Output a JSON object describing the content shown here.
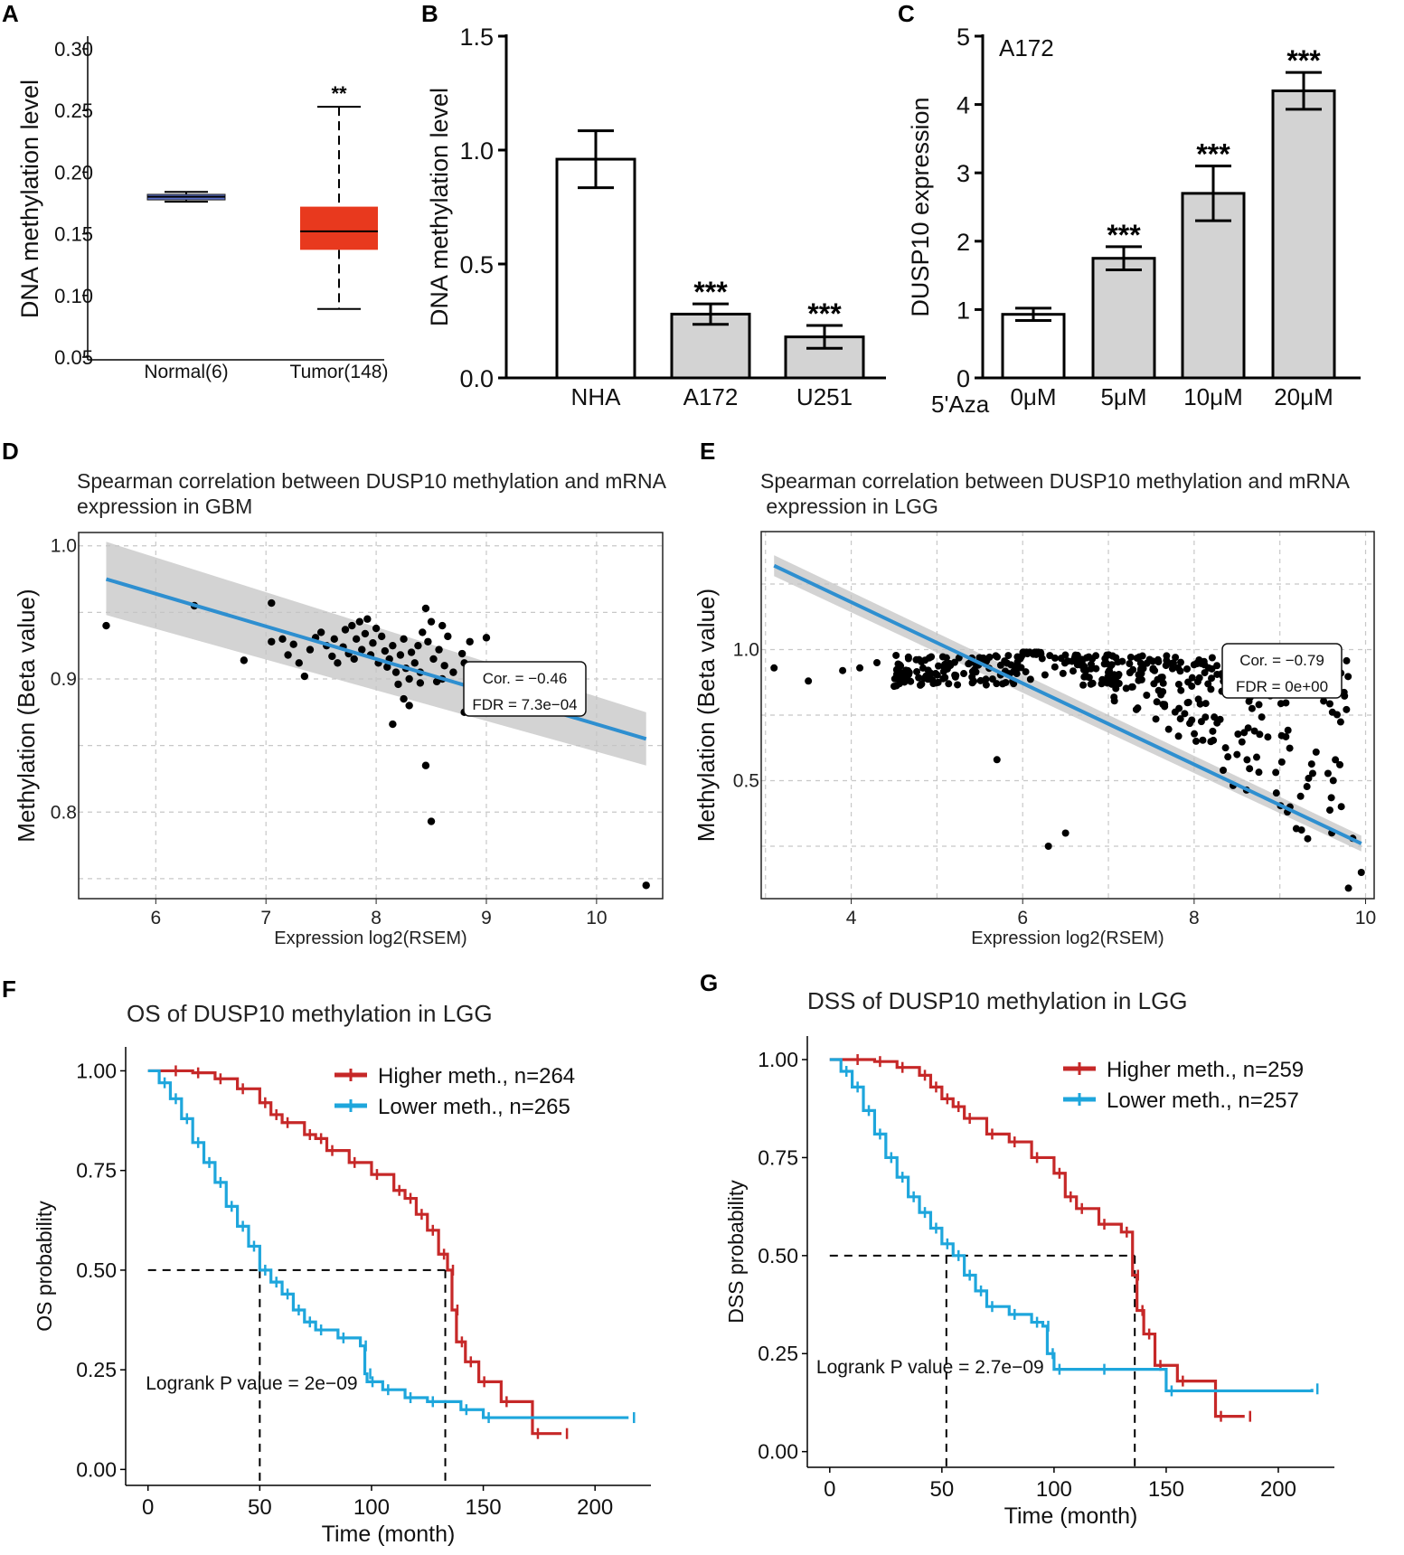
{
  "chart_data": [
    {
      "id": "A",
      "type": "box",
      "panel_label": "A",
      "ylabel": "DNA methylation level",
      "yticks": [
        "0.30",
        "0.25",
        "0.20",
        "0.15",
        "0.10",
        "0.05"
      ],
      "ylim": [
        0.05,
        0.3
      ],
      "groups": [
        {
          "label": "Normal(6)",
          "min": 0.176,
          "q1": 0.1775,
          "median": 0.18,
          "q3": 0.182,
          "max": 0.184,
          "color": "#5b6fc9",
          "annotation": ""
        },
        {
          "label": "Tumor(148)",
          "min": 0.089,
          "q1": 0.137,
          "median": 0.152,
          "q3": 0.172,
          "max": 0.253,
          "color": "#e8391e",
          "annotation": "**"
        }
      ]
    },
    {
      "id": "B",
      "type": "bar",
      "panel_label": "B",
      "ylabel": "DNA methylation level",
      "yticks": [
        "1.5",
        "1.0",
        "0.5",
        "0.0"
      ],
      "ylim": [
        0,
        1.5
      ],
      "categories": [
        "NHA",
        "A172",
        "U251"
      ],
      "values": [
        0.96,
        0.28,
        0.18
      ],
      "errors": [
        0.125,
        0.045,
        0.05
      ],
      "colors": [
        "#ffffff",
        "#d3d3d3",
        "#d3d3d3"
      ],
      "annotations": [
        "",
        "***",
        "***"
      ]
    },
    {
      "id": "C",
      "type": "bar",
      "panel_label": "C",
      "ylabel": "DUSP10 expression",
      "inset_label": "A172",
      "yticks": [
        "5",
        "4",
        "3",
        "2",
        "1",
        "0"
      ],
      "ylim": [
        0,
        5
      ],
      "xprefix": "5'Aza",
      "categories": [
        "0μM",
        "5μM",
        "10μM",
        "20μM"
      ],
      "values": [
        0.93,
        1.75,
        2.7,
        4.2
      ],
      "errors": [
        0.09,
        0.17,
        0.4,
        0.27
      ],
      "colors": [
        "#ffffff",
        "#d3d3d3",
        "#d3d3d3",
        "#d3d3d3"
      ],
      "annotations": [
        "",
        "***",
        "***",
        "***"
      ]
    },
    {
      "id": "D",
      "type": "scatter",
      "panel_label": "D",
      "title_lines": [
        "Spearman correlation between DUSP10 methylation and mRNA",
        "expression in GBM"
      ],
      "xlabel": "Expression log2(RSEM)",
      "ylabel": "Methylation (Beta value)",
      "xlim": [
        5.3,
        10.6
      ],
      "ylim": [
        0.735,
        1.01
      ],
      "xticks": [
        6,
        7,
        8,
        9,
        10
      ],
      "xtick_labels": [
        "6",
        "7",
        "8",
        "9",
        "10"
      ],
      "yticks": [
        0.8,
        0.9,
        1.0
      ],
      "ytick_labels": [
        "0.8",
        "0.9",
        "1.0"
      ],
      "minor_grid_y": [
        0.75,
        0.85,
        0.95
      ],
      "points": [
        [
          5.55,
          0.94
        ],
        [
          6.35,
          0.955
        ],
        [
          6.8,
          0.914
        ],
        [
          7.05,
          0.957
        ],
        [
          7.05,
          0.928
        ],
        [
          7.15,
          0.93
        ],
        [
          7.2,
          0.918
        ],
        [
          7.25,
          0.926
        ],
        [
          7.3,
          0.912
        ],
        [
          7.35,
          0.902
        ],
        [
          7.4,
          0.922
        ],
        [
          7.45,
          0.931
        ],
        [
          7.5,
          0.935
        ],
        [
          7.55,
          0.925
        ],
        [
          7.6,
          0.917
        ],
        [
          7.62,
          0.93
        ],
        [
          7.65,
          0.912
        ],
        [
          7.7,
          0.924
        ],
        [
          7.72,
          0.937
        ],
        [
          7.75,
          0.919
        ],
        [
          7.78,
          0.94
        ],
        [
          7.8,
          0.915
        ],
        [
          7.82,
          0.93
        ],
        [
          7.85,
          0.943
        ],
        [
          7.87,
          0.922
        ],
        [
          7.9,
          0.934
        ],
        [
          7.92,
          0.945
        ],
        [
          7.95,
          0.918
        ],
        [
          7.97,
          0.927
        ],
        [
          8.0,
          0.938
        ],
        [
          8.02,
          0.912
        ],
        [
          8.05,
          0.932
        ],
        [
          8.08,
          0.921
        ],
        [
          8.1,
          0.909
        ],
        [
          8.12,
          0.915
        ],
        [
          8.15,
          0.925
        ],
        [
          8.18,
          0.905
        ],
        [
          8.2,
          0.896
        ],
        [
          8.22,
          0.918
        ],
        [
          8.25,
          0.93
        ],
        [
          8.27,
          0.908
        ],
        [
          8.3,
          0.9
        ],
        [
          8.32,
          0.92
        ],
        [
          8.35,
          0.912
        ],
        [
          8.38,
          0.925
        ],
        [
          8.4,
          0.905
        ],
        [
          8.42,
          0.935
        ],
        [
          8.45,
          0.953
        ],
        [
          8.47,
          0.928
        ],
        [
          8.5,
          0.943
        ],
        [
          8.52,
          0.915
        ],
        [
          8.55,
          0.898
        ],
        [
          8.57,
          0.922
        ],
        [
          8.6,
          0.94
        ],
        [
          8.62,
          0.91
        ],
        [
          8.65,
          0.932
        ],
        [
          8.7,
          0.905
        ],
        [
          8.78,
          0.919
        ],
        [
          8.8,
          0.912
        ],
        [
          8.85,
          0.928
        ],
        [
          9.0,
          0.931
        ],
        [
          8.25,
          0.885
        ],
        [
          8.3,
          0.88
        ],
        [
          8.15,
          0.866
        ],
        [
          8.45,
          0.835
        ],
        [
          8.5,
          0.793
        ],
        [
          8.8,
          0.875
        ],
        [
          10.45,
          0.745
        ],
        [
          8.6,
          0.9
        ],
        [
          8.4,
          0.897
        ]
      ],
      "fit": {
        "x": [
          5.55,
          10.45
        ],
        "y": [
          0.975,
          0.855
        ]
      },
      "band": {
        "x": [
          5.55,
          10.45
        ],
        "upper": [
          1.003,
          0.875
        ],
        "lower": [
          0.948,
          0.835
        ]
      },
      "stats": [
        "Cor. = −0.46",
        "FDR = 7.3e−04"
      ]
    },
    {
      "id": "E",
      "type": "scatter",
      "panel_label": "E",
      "title_lines": [
        "Spearman correlation between DUSP10 methylation and mRNA",
        " expression in LGG"
      ],
      "xlabel": "Expression log2(RSEM)",
      "ylabel": "Methylation (Beta value)",
      "xlim": [
        2.95,
        10.1
      ],
      "ylim": [
        0.05,
        1.45
      ],
      "xticks": [
        4,
        6,
        8,
        10
      ],
      "xtick_labels": [
        "4",
        "6",
        "8",
        "10"
      ],
      "yticks": [
        0.5,
        1.0
      ],
      "ytick_labels": [
        "0.5",
        "1.0"
      ],
      "minor_grid_y": [
        0.25,
        0.75,
        1.25
      ],
      "minor_grid_x": [
        3,
        5,
        7,
        9
      ],
      "fit": {
        "x": [
          3.1,
          9.95
        ],
        "y": [
          1.32,
          0.26
        ]
      },
      "band": {
        "x": [
          3.1,
          9.95
        ],
        "upper": [
          1.36,
          0.29
        ],
        "lower": [
          1.28,
          0.23
        ]
      },
      "stats": [
        "Cor. = −0.79",
        "FDR = 0e+00"
      ]
    },
    {
      "id": "F",
      "type": "km",
      "panel_label": "F",
      "title": "OS of DUSP10 methylation in LGG",
      "xlabel": "Time (month)",
      "ylabel": "OS probability",
      "xlim": [
        -10,
        225
      ],
      "ylim": [
        -0.04,
        1.06
      ],
      "xticks": [
        0,
        50,
        100,
        150,
        200
      ],
      "yticks": [
        0,
        0.25,
        0.5,
        0.75,
        1.0
      ],
      "ytick_labels": [
        "0.00",
        "0.25",
        "0.50",
        "0.75",
        "1.00"
      ],
      "series": [
        {
          "name": "Higher meth., n=264",
          "color": "#c62828",
          "steps": [
            [
              0,
              1
            ],
            [
              10,
              1
            ],
            [
              20,
              0.995
            ],
            [
              30,
              0.98
            ],
            [
              40,
              0.955
            ],
            [
              50,
              0.92
            ],
            [
              55,
              0.89
            ],
            [
              60,
              0.87
            ],
            [
              70,
              0.84
            ],
            [
              75,
              0.83
            ],
            [
              80,
              0.8
            ],
            [
              90,
              0.77
            ],
            [
              100,
              0.74
            ],
            [
              110,
              0.7
            ],
            [
              115,
              0.68
            ],
            [
              120,
              0.64
            ],
            [
              125,
              0.6
            ],
            [
              130,
              0.54
            ],
            [
              134,
              0.5
            ],
            [
              136,
              0.4
            ],
            [
              138,
              0.32
            ],
            [
              142,
              0.27
            ],
            [
              148,
              0.22
            ],
            [
              158,
              0.17
            ],
            [
              172,
              0.09
            ],
            [
              185,
              0.09
            ]
          ]
        },
        {
          "name": "Lower meth., n=265",
          "color": "#1ea6dc",
          "steps": [
            [
              0,
              1
            ],
            [
              5,
              0.97
            ],
            [
              10,
              0.93
            ],
            [
              15,
              0.88
            ],
            [
              20,
              0.82
            ],
            [
              25,
              0.77
            ],
            [
              30,
              0.72
            ],
            [
              35,
              0.66
            ],
            [
              40,
              0.61
            ],
            [
              45,
              0.56
            ],
            [
              50,
              0.5
            ],
            [
              55,
              0.47
            ],
            [
              60,
              0.44
            ],
            [
              65,
              0.4
            ],
            [
              70,
              0.37
            ],
            [
              75,
              0.35
            ],
            [
              85,
              0.33
            ],
            [
              95,
              0.31
            ],
            [
              97,
              0.24
            ],
            [
              98,
              0.22
            ],
            [
              105,
              0.2
            ],
            [
              115,
              0.18
            ],
            [
              125,
              0.17
            ],
            [
              140,
              0.15
            ],
            [
              150,
              0.13
            ],
            [
              215,
              0.13
            ]
          ]
        }
      ],
      "median_lines": [
        [
          50,
          0.5
        ],
        [
          133,
          0.5
        ]
      ],
      "pvalue": "Logrank P value = 2e−09"
    },
    {
      "id": "G",
      "type": "km",
      "panel_label": "G",
      "title": "DSS of DUSP10 methylation in LGG",
      "xlabel": "Time (month)",
      "ylabel": "DSS probability",
      "xlim": [
        -10,
        225
      ],
      "ylim": [
        -0.04,
        1.06
      ],
      "xticks": [
        0,
        50,
        100,
        150,
        200
      ],
      "yticks": [
        0,
        0.25,
        0.5,
        0.75,
        1.0
      ],
      "ytick_labels": [
        "0.00",
        "0.25",
        "0.50",
        "0.75",
        "1.00"
      ],
      "series": [
        {
          "name": "Higher meth., n=259",
          "color": "#c62828",
          "steps": [
            [
              0,
              1
            ],
            [
              10,
              1
            ],
            [
              20,
              0.995
            ],
            [
              30,
              0.98
            ],
            [
              40,
              0.96
            ],
            [
              45,
              0.93
            ],
            [
              50,
              0.9
            ],
            [
              55,
              0.88
            ],
            [
              60,
              0.85
            ],
            [
              70,
              0.81
            ],
            [
              80,
              0.79
            ],
            [
              90,
              0.75
            ],
            [
              100,
              0.71
            ],
            [
              105,
              0.65
            ],
            [
              110,
              0.62
            ],
            [
              120,
              0.58
            ],
            [
              130,
              0.56
            ],
            [
              135,
              0.45
            ],
            [
              137,
              0.36
            ],
            [
              140,
              0.3
            ],
            [
              145,
              0.22
            ],
            [
              155,
              0.18
            ],
            [
              172,
              0.09
            ],
            [
              185,
              0.09
            ]
          ]
        },
        {
          "name": "Lower meth., n=257",
          "color": "#1ea6dc",
          "steps": [
            [
              0,
              1
            ],
            [
              5,
              0.97
            ],
            [
              10,
              0.93
            ],
            [
              15,
              0.87
            ],
            [
              20,
              0.81
            ],
            [
              25,
              0.75
            ],
            [
              30,
              0.7
            ],
            [
              35,
              0.65
            ],
            [
              40,
              0.61
            ],
            [
              45,
              0.57
            ],
            [
              50,
              0.53
            ],
            [
              55,
              0.5
            ],
            [
              60,
              0.45
            ],
            [
              65,
              0.41
            ],
            [
              70,
              0.37
            ],
            [
              80,
              0.35
            ],
            [
              90,
              0.33
            ],
            [
              95,
              0.32
            ],
            [
              97,
              0.25
            ],
            [
              100,
              0.21
            ],
            [
              120,
              0.21
            ],
            [
              150,
              0.155
            ],
            [
              215,
              0.16
            ]
          ]
        }
      ],
      "median_lines": [
        [
          52,
          0.5
        ],
        [
          136,
          0.5
        ]
      ],
      "pvalue": "Logrank P value = 2.7e−09"
    }
  ]
}
